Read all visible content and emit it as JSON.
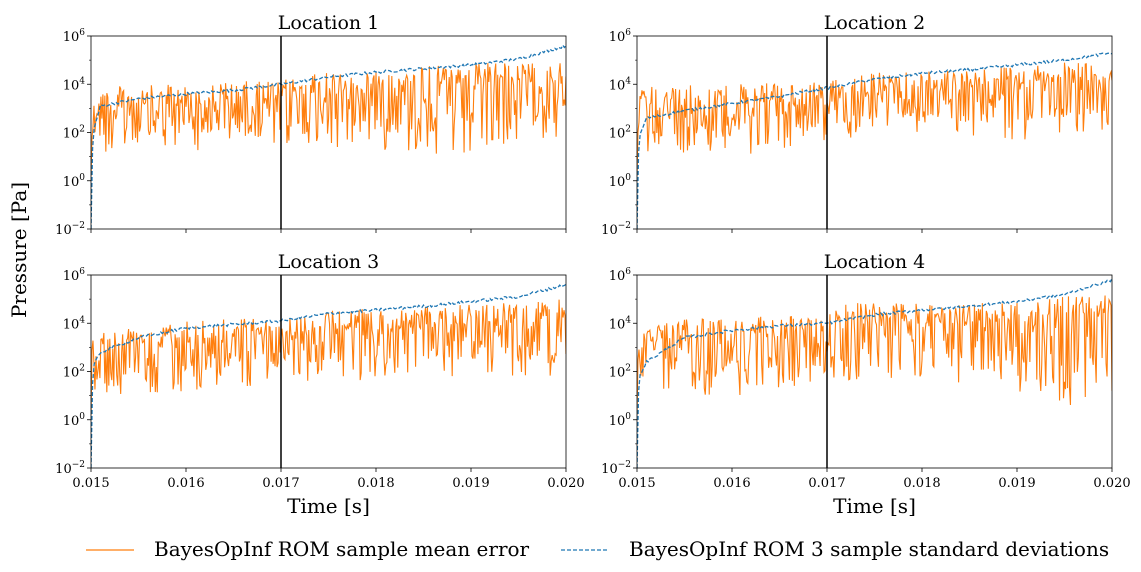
{
  "chart_data": {
    "type": "line",
    "ylabel": "Pressure [Pa]",
    "xlabel": "Time [s]",
    "yscale": "log",
    "ylim": [
      0.01,
      1000000
    ],
    "xlim": [
      0.015,
      0.02
    ],
    "x_ticks": [
      "0.015",
      "0.016",
      "0.017",
      "0.018",
      "0.019",
      "0.020"
    ],
    "y_ticks": [
      {
        "base": "10",
        "exp": "−2"
      },
      {
        "base": "10",
        "exp": "0"
      },
      {
        "base": "10",
        "exp": "2"
      },
      {
        "base": "10",
        "exp": "4"
      },
      {
        "base": "10",
        "exp": "6"
      }
    ],
    "vertical_line_x": 0.017,
    "legend": {
      "placement": "bottom-center",
      "entries": [
        {
          "label": "BayesOpInf ROM sample mean error",
          "color": "#ff7f0e",
          "style": "solid"
        },
        {
          "label": "BayesOpInf ROM 3 sample standard deviations",
          "color": "#1f77b4",
          "style": "dashed"
        }
      ]
    },
    "panels": [
      {
        "title": "Location 1",
        "series": [
          {
            "key": "mean_error",
            "color": "#ff7f0e",
            "style": "solid",
            "envelope_upper_log10": [
              [
                0.015,
                3.9
              ],
              [
                0.016,
                4.0
              ],
              [
                0.017,
                4.2
              ],
              [
                0.0175,
                4.5
              ],
              [
                0.018,
                4.6
              ],
              [
                0.019,
                4.9
              ],
              [
                0.02,
                4.9
              ]
            ],
            "envelope_lower_log10": [
              [
                0.015,
                1.0
              ],
              [
                0.016,
                1.2
              ],
              [
                0.017,
                1.5
              ],
              [
                0.018,
                1.3
              ],
              [
                0.019,
                1.0
              ],
              [
                0.02,
                1.8
              ]
            ]
          },
          {
            "key": "std3",
            "color": "#1f77b4",
            "style": "dashed",
            "points_log10": [
              [
                0.015,
                -2.0
              ],
              [
                0.01502,
                2.0
              ],
              [
                0.0151,
                3.1
              ],
              [
                0.0155,
                3.4
              ],
              [
                0.016,
                3.6
              ],
              [
                0.0165,
                3.75
              ],
              [
                0.017,
                4.0
              ],
              [
                0.0175,
                4.3
              ],
              [
                0.018,
                4.5
              ],
              [
                0.0185,
                4.65
              ],
              [
                0.019,
                4.8
              ],
              [
                0.0195,
                5.05
              ],
              [
                0.02,
                5.6
              ]
            ]
          }
        ]
      },
      {
        "title": "Location 2",
        "series": [
          {
            "key": "mean_error",
            "color": "#ff7f0e",
            "style": "solid",
            "envelope_upper_log10": [
              [
                0.015,
                3.9
              ],
              [
                0.016,
                4.0
              ],
              [
                0.017,
                4.1
              ],
              [
                0.0175,
                4.5
              ],
              [
                0.018,
                4.6
              ],
              [
                0.019,
                4.8
              ],
              [
                0.02,
                5.0
              ]
            ],
            "envelope_lower_log10": [
              [
                0.015,
                1.2
              ],
              [
                0.016,
                1.0
              ],
              [
                0.017,
                1.6
              ],
              [
                0.018,
                2.0
              ],
              [
                0.019,
                1.6
              ],
              [
                0.02,
                2.0
              ]
            ]
          },
          {
            "key": "std3",
            "color": "#1f77b4",
            "style": "dashed",
            "points_log10": [
              [
                0.015,
                -2.0
              ],
              [
                0.01502,
                1.8
              ],
              [
                0.0151,
                2.6
              ],
              [
                0.0155,
                2.9
              ],
              [
                0.016,
                3.2
              ],
              [
                0.0165,
                3.5
              ],
              [
                0.017,
                3.85
              ],
              [
                0.0175,
                4.2
              ],
              [
                0.018,
                4.45
              ],
              [
                0.0185,
                4.6
              ],
              [
                0.019,
                4.8
              ],
              [
                0.0195,
                5.0
              ],
              [
                0.02,
                5.3
              ]
            ]
          }
        ]
      },
      {
        "title": "Location 3",
        "series": [
          {
            "key": "mean_error",
            "color": "#ff7f0e",
            "style": "solid",
            "envelope_upper_log10": [
              [
                0.015,
                3.6
              ],
              [
                0.016,
                4.3
              ],
              [
                0.017,
                4.2
              ],
              [
                0.0175,
                4.6
              ],
              [
                0.018,
                4.6
              ],
              [
                0.019,
                4.8
              ],
              [
                0.02,
                5.0
              ]
            ],
            "envelope_lower_log10": [
              [
                0.015,
                0.8
              ],
              [
                0.016,
                1.2
              ],
              [
                0.017,
                1.5
              ],
              [
                0.018,
                1.6
              ],
              [
                0.019,
                1.6
              ],
              [
                0.02,
                1.8
              ]
            ]
          },
          {
            "key": "std3",
            "color": "#1f77b4",
            "style": "dashed",
            "points_log10": [
              [
                0.015,
                -2.0
              ],
              [
                0.01502,
                2.2
              ],
              [
                0.0151,
                2.8
              ],
              [
                0.0155,
                3.4
              ],
              [
                0.016,
                3.8
              ],
              [
                0.0165,
                3.95
              ],
              [
                0.017,
                4.1
              ],
              [
                0.0175,
                4.4
              ],
              [
                0.018,
                4.55
              ],
              [
                0.0185,
                4.7
              ],
              [
                0.019,
                4.9
              ],
              [
                0.0195,
                5.1
              ],
              [
                0.02,
                5.6
              ]
            ]
          }
        ]
      },
      {
        "title": "Location 4",
        "series": [
          {
            "key": "mean_error",
            "color": "#ff7f0e",
            "style": "solid",
            "envelope_upper_log10": [
              [
                0.015,
                4.0
              ],
              [
                0.016,
                4.3
              ],
              [
                0.017,
                4.3
              ],
              [
                0.0171,
                4.9
              ],
              [
                0.018,
                4.8
              ],
              [
                0.019,
                4.9
              ],
              [
                0.02,
                5.3
              ]
            ],
            "envelope_lower_log10": [
              [
                0.015,
                1.3
              ],
              [
                0.016,
                0.9
              ],
              [
                0.017,
                1.6
              ],
              [
                0.018,
                1.6
              ],
              [
                0.019,
                1.2
              ],
              [
                0.02,
                0.0
              ]
            ]
          },
          {
            "key": "std3",
            "color": "#1f77b4",
            "style": "dashed",
            "points_log10": [
              [
                0.015,
                -2.0
              ],
              [
                0.01502,
                1.8
              ],
              [
                0.0151,
                2.4
              ],
              [
                0.0155,
                3.4
              ],
              [
                0.016,
                3.7
              ],
              [
                0.0165,
                3.9
              ],
              [
                0.017,
                4.0
              ],
              [
                0.0175,
                4.35
              ],
              [
                0.018,
                4.55
              ],
              [
                0.0185,
                4.7
              ],
              [
                0.019,
                4.9
              ],
              [
                0.0195,
                5.2
              ],
              [
                0.02,
                5.8
              ]
            ]
          }
        ]
      }
    ]
  }
}
